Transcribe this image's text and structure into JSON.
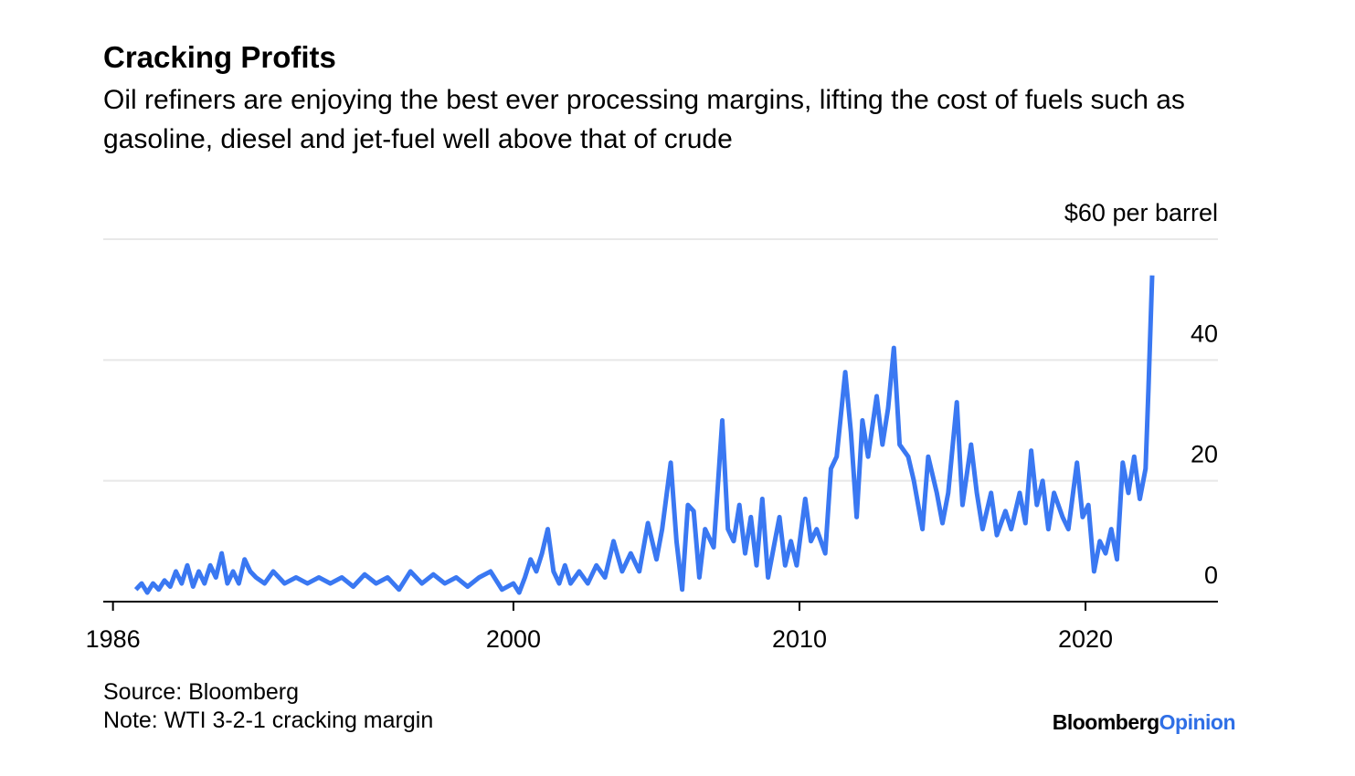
{
  "chart_data": {
    "type": "line",
    "title": "Cracking Profits",
    "subtitle": "Oil refiners are enjoying the best ever processing margins, lifting the cost of fuels such as gasoline, diesel and jet-fuel well above that of crude",
    "source": "Source: Bloomberg",
    "note": "Note: WTI 3-2-1 cracking margin",
    "logo": [
      "Bloomberg",
      "Opinion"
    ],
    "xlim": [
      1985.66,
      2024.63
    ],
    "xticks": [
      1986,
      2000,
      2010,
      2020
    ],
    "ylim": [
      0,
      60
    ],
    "yticks": [
      0,
      20,
      40,
      {
        "value": 60,
        "label": "$60 per barrel"
      }
    ],
    "grid": true,
    "series": [
      {
        "color": "#3a78f2",
        "x": [
          1986.8,
          1987.0,
          1987.2,
          1987.4,
          1987.6,
          1987.8,
          1988.0,
          1988.2,
          1988.4,
          1988.6,
          1988.8,
          1989.0,
          1989.2,
          1989.4,
          1989.6,
          1989.8,
          1990.0,
          1990.2,
          1990.4,
          1990.6,
          1990.8,
          1991.0,
          1991.3,
          1991.6,
          1992.0,
          1992.4,
          1992.8,
          1993.2,
          1993.6,
          1994.0,
          1994.4,
          1994.8,
          1995.2,
          1995.6,
          1996.0,
          1996.4,
          1996.8,
          1997.2,
          1997.6,
          1998.0,
          1998.4,
          1998.8,
          1999.2,
          1999.6,
          2000.0,
          2000.2,
          2000.4,
          2000.6,
          2000.8,
          2001.0,
          2001.2,
          2001.4,
          2001.6,
          2001.8,
          2002.0,
          2002.3,
          2002.6,
          2002.9,
          2003.2,
          2003.5,
          2003.8,
          2004.1,
          2004.4,
          2004.7,
          2005.0,
          2005.2,
          2005.5,
          2005.7,
          2005.9,
          2006.1,
          2006.3,
          2006.5,
          2006.7,
          2007.0,
          2007.3,
          2007.5,
          2007.7,
          2007.9,
          2008.1,
          2008.3,
          2008.5,
          2008.7,
          2008.9,
          2009.1,
          2009.3,
          2009.5,
          2009.7,
          2009.9,
          2010.2,
          2010.4,
          2010.6,
          2010.9,
          2011.1,
          2011.3,
          2011.6,
          2011.8,
          2012.0,
          2012.2,
          2012.4,
          2012.7,
          2012.9,
          2013.1,
          2013.3,
          2013.5,
          2013.8,
          2014.0,
          2014.3,
          2014.5,
          2014.8,
          2015.0,
          2015.2,
          2015.5,
          2015.7,
          2016.0,
          2016.2,
          2016.4,
          2016.7,
          2016.9,
          2017.2,
          2017.4,
          2017.7,
          2017.9,
          2018.1,
          2018.3,
          2018.5,
          2018.7,
          2018.9,
          2019.2,
          2019.4,
          2019.7,
          2019.9,
          2020.1,
          2020.3,
          2020.5,
          2020.7,
          2020.9,
          2021.1,
          2021.3,
          2021.5,
          2021.7,
          2021.9,
          2022.1,
          2022.2,
          2022.33
        ],
        "values": [
          2,
          3,
          1.5,
          3,
          2,
          3.5,
          2.5,
          5,
          3,
          6,
          2.5,
          5,
          3,
          6,
          4,
          8,
          3,
          5,
          3,
          7,
          5,
          4,
          3,
          5,
          3,
          4,
          3,
          4,
          3,
          4,
          2.5,
          4.5,
          3,
          4,
          2,
          5,
          3,
          4.5,
          3,
          4,
          2.5,
          4,
          5,
          2,
          3,
          1.5,
          4,
          7,
          5,
          8,
          12,
          5,
          3,
          6,
          3,
          5,
          3,
          6,
          4,
          10,
          5,
          8,
          5,
          13,
          7,
          12,
          23,
          10,
          2,
          16,
          15,
          4,
          12,
          9,
          30,
          12,
          10,
          16,
          8,
          14,
          6,
          17,
          4,
          9,
          14,
          6,
          10,
          6,
          17,
          10,
          12,
          8,
          22,
          24,
          38,
          28,
          14,
          30,
          24,
          34,
          26,
          32,
          42,
          26,
          24,
          20,
          12,
          24,
          18,
          13,
          18,
          33,
          16,
          26,
          18,
          12,
          18,
          11,
          15,
          12,
          18,
          13,
          25,
          16,
          20,
          12,
          18,
          14,
          12,
          23,
          14,
          16,
          5,
          10,
          8,
          12,
          7,
          23,
          18,
          24,
          17,
          22,
          35,
          54
        ]
      }
    ]
  }
}
